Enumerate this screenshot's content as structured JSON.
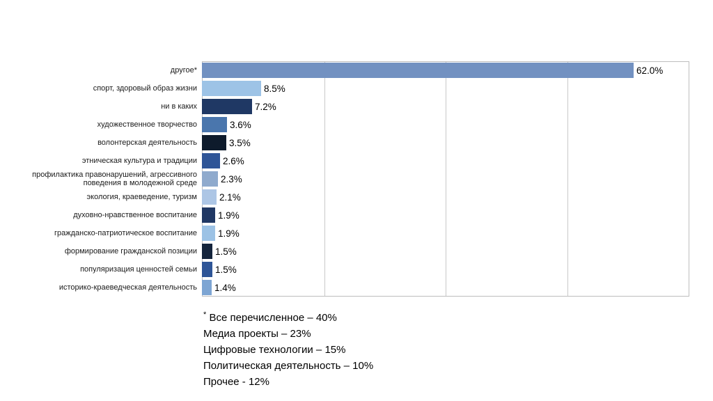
{
  "chart_data": {
    "type": "bar",
    "orientation": "horizontal",
    "title": "",
    "xlabel": "",
    "ylabel": "",
    "xlim": [
      0,
      70
    ],
    "gridlines_percent": [
      25,
      50,
      75
    ],
    "legend": "none",
    "categories": [
      "другое*",
      "спорт, здоровый образ жизни",
      "ни в каких",
      "художественное творчество",
      "волонтерская деятельность",
      "этническая культура и традиции",
      "профилактика правонарушений, агрессивного поведения в молодежной среде",
      "экология, краеведение, туризм",
      "духовно-нравственное воспитание",
      "гражданско-патриотическое воспитание",
      "формирование гражданской позиции",
      "популяризация ценностей семьи",
      "историко-краеведческая деятельность"
    ],
    "values": [
      62.0,
      8.5,
      7.2,
      3.6,
      3.5,
      2.6,
      2.3,
      2.1,
      1.9,
      1.9,
      1.5,
      1.5,
      1.4
    ],
    "value_labels": [
      "62.0%",
      "8.5%",
      "7.2%",
      "3.6%",
      "3.5%",
      "2.6%",
      "2.3%",
      "2.1%",
      "1.9%",
      "1.9%",
      "1.5%",
      "1.5%",
      "1.4%"
    ],
    "bar_colors": [
      "#7291c1",
      "#9dc3e6",
      "#1f3864",
      "#4a76ad",
      "#0e1b2c",
      "#2f5597",
      "#8faacd",
      "#adc6e5",
      "#203864",
      "#9cc2e5",
      "#14243c",
      "#2e5597",
      "#7da5d3"
    ],
    "grid_color": "#c9c9c9",
    "border_color": "#bdbdbd"
  },
  "footnote": {
    "lines": [
      {
        "sup": "*",
        "text": " Все перечисленное – 40%"
      },
      {
        "sup": "",
        "text": "Медиа проекты – 23%"
      },
      {
        "sup": "",
        "text": "Цифровые технологии –  15%"
      },
      {
        "sup": "",
        "text": "Политическая деятельность – 10%"
      },
      {
        "sup": "",
        "text": "Прочее - 12%"
      }
    ]
  }
}
